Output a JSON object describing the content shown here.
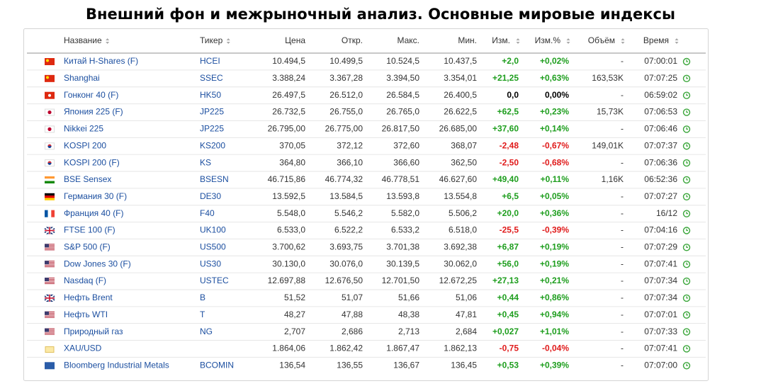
{
  "header": {
    "title": "Внешний фон и межрыночный анализ. Основные мировые индексы"
  },
  "table": {
    "columns": [
      "Название",
      "Тикер",
      "Цена",
      "Откр.",
      "Макс.",
      "Мин.",
      "Изм.",
      "Изм.%",
      "Объём",
      "Время"
    ],
    "rows": [
      [
        "Китай H-Shares (F)",
        "HCEI",
        "10.494,5",
        "10.499,5",
        "10.524,5",
        "10.437,5",
        "+2,0",
        "+0,02%",
        "-",
        "07:00:01"
      ],
      [
        "Shanghai",
        "SSEC",
        "3.388,24",
        "3.367,28",
        "3.394,50",
        "3.354,01",
        "+21,25",
        "+0,63%",
        "163,53K",
        "07:07:25"
      ],
      [
        "Гонконг 40 (F)",
        "HK50",
        "26.497,5",
        "26.512,0",
        "26.584,5",
        "26.400,5",
        "0,0",
        "0,00%",
        "-",
        "06:59:02"
      ],
      [
        "Япония 225 (F)",
        "JP225",
        "26.732,5",
        "26.755,0",
        "26.765,0",
        "26.622,5",
        "+62,5",
        "+0,23%",
        "15,73K",
        "07:06:53"
      ],
      [
        "Nikkei 225",
        "JP225",
        "26.795,00",
        "26.775,00",
        "26.817,50",
        "26.685,00",
        "+37,60",
        "+0,14%",
        "-",
        "07:06:46"
      ],
      [
        "KOSPI 200",
        "KS200",
        "370,05",
        "372,12",
        "372,60",
        "368,07",
        "-2,48",
        "-0,67%",
        "149,01K",
        "07:07:37"
      ],
      [
        "KOSPI 200 (F)",
        "KS",
        "364,80",
        "366,10",
        "366,60",
        "362,50",
        "-2,50",
        "-0,68%",
        "-",
        "07:06:36"
      ],
      [
        "BSE Sensex",
        "BSESN",
        "46.715,86",
        "46.774,32",
        "46.778,51",
        "46.627,60",
        "+49,40",
        "+0,11%",
        "1,16K",
        "06:52:36"
      ],
      [
        "Германия 30 (F)",
        "DE30",
        "13.592,5",
        "13.584,5",
        "13.593,8",
        "13.554,8",
        "+6,5",
        "+0,05%",
        "-",
        "07:07:27"
      ],
      [
        "Франция 40 (F)",
        "F40",
        "5.548,0",
        "5.546,2",
        "5.582,0",
        "5.506,2",
        "+20,0",
        "+0,36%",
        "-",
        "16/12"
      ],
      [
        "FTSE 100 (F)",
        "UK100",
        "6.533,0",
        "6.522,2",
        "6.533,2",
        "6.518,0",
        "-25,5",
        "-0,39%",
        "-",
        "07:04:16"
      ],
      [
        "S&P 500 (F)",
        "US500",
        "3.700,62",
        "3.693,75",
        "3.701,38",
        "3.692,38",
        "+6,87",
        "+0,19%",
        "-",
        "07:07:29"
      ],
      [
        "Dow Jones 30 (F)",
        "US30",
        "30.130,0",
        "30.076,0",
        "30.139,5",
        "30.062,0",
        "+56,0",
        "+0,19%",
        "-",
        "07:07:41"
      ],
      [
        "Nasdaq (F)",
        "USTEC",
        "12.697,88",
        "12.676,50",
        "12.701,50",
        "12.672,25",
        "+27,13",
        "+0,21%",
        "-",
        "07:07:34"
      ],
      [
        "Нефть Brent",
        "B",
        "51,52",
        "51,07",
        "51,66",
        "51,06",
        "+0,44",
        "+0,86%",
        "-",
        "07:07:34"
      ],
      [
        "Нефть WTI",
        "T",
        "48,27",
        "47,88",
        "48,38",
        "47,81",
        "+0,45",
        "+0,94%",
        "-",
        "07:07:01"
      ],
      [
        "Природный газ",
        "NG",
        "2,707",
        "2,686",
        "2,713",
        "2,684",
        "+0,027",
        "+1,01%",
        "-",
        "07:07:33"
      ],
      [
        "XAU/USD",
        null,
        "1.864,06",
        "1.862,42",
        "1.867,47",
        "1.862,13",
        "-0,75",
        "-0,04%",
        "-",
        "07:07:41"
      ],
      [
        "Bloomberg Industrial Metals",
        "BCOMIN",
        "136,54",
        "136,55",
        "136,67",
        "136,45",
        "+0,53",
        "+0,39%",
        "-",
        "07:07:00"
      ]
    ]
  }
}
